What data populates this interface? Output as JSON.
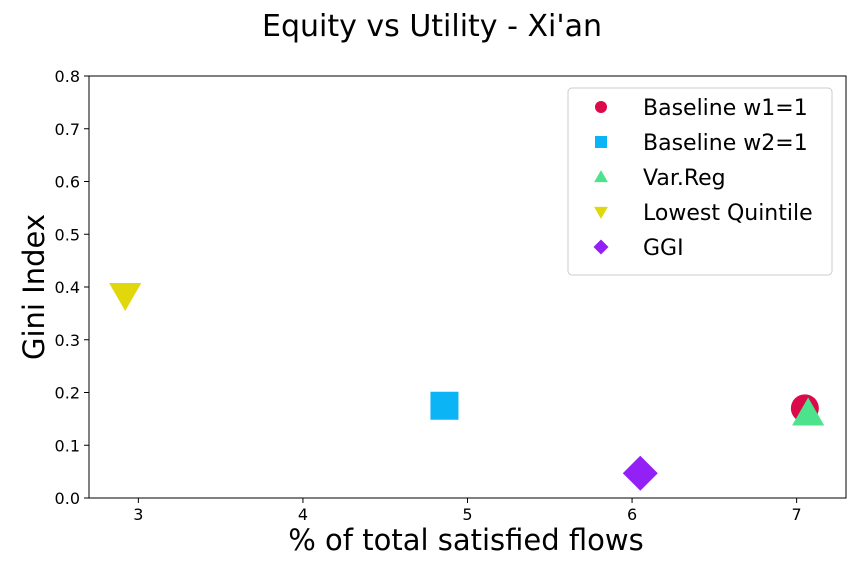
{
  "chart_data": {
    "type": "scatter",
    "title": "Equity vs Utility - Xi'an",
    "xlabel": "% of total satisfied flows",
    "ylabel": "Gini Index",
    "xlim": [
      2.7,
      7.3
    ],
    "ylim": [
      0.0,
      0.8
    ],
    "xticks": [
      "3",
      "4",
      "5",
      "6",
      "7"
    ],
    "yticks": [
      "0.0",
      "0.1",
      "0.2",
      "0.3",
      "0.4",
      "0.5",
      "0.6",
      "0.7",
      "0.8"
    ],
    "grid": false,
    "legend_position": "top-right",
    "series": [
      {
        "name": "Baseline w1=1",
        "marker": "circle",
        "color": "#dc0a4a",
        "points": [
          [
            7.05,
            0.17
          ]
        ]
      },
      {
        "name": "Baseline w2=1",
        "marker": "square",
        "color": "#0ab4f5",
        "points": [
          [
            4.86,
            0.175
          ]
        ]
      },
      {
        "name": "Var.Reg",
        "marker": "triangle-up",
        "color": "#4de38c",
        "points": [
          [
            7.07,
            0.16
          ]
        ]
      },
      {
        "name": "Lowest Quintile",
        "marker": "triangle-down",
        "color": "#e0d80a",
        "points": [
          [
            2.92,
            0.385
          ]
        ]
      },
      {
        "name": "GGI",
        "marker": "diamond",
        "color": "#9321f5",
        "points": [
          [
            6.05,
            0.047
          ]
        ]
      }
    ]
  }
}
